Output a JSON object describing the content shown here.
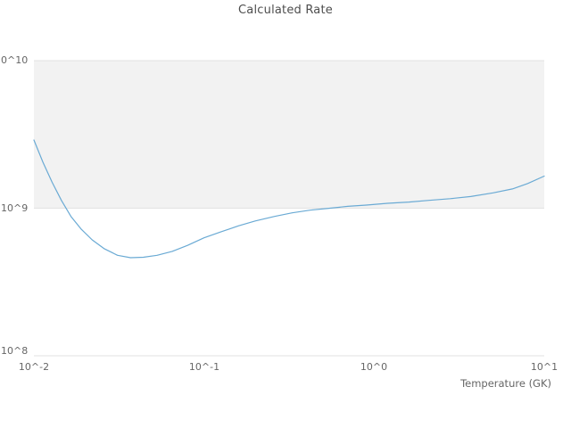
{
  "chart_data": {
    "type": "line",
    "title": "Calculated Rate",
    "xlabel": "Temperature (GK)",
    "ylabel": "",
    "x_scale": "log",
    "y_scale": "log",
    "xlim": [
      0.01,
      10
    ],
    "ylim": [
      100000000,
      10000000000
    ],
    "x_tick_labels": [
      "10^-2",
      "10^-1",
      "10^0",
      "10^1"
    ],
    "y_tick_labels": [
      "0^10",
      "10^9",
      "10^8"
    ],
    "grid": "horizontal decade lines; shaded band between 10^9 and 10^10",
    "legend": "none",
    "series": [
      {
        "name": "Calculated Rate",
        "x": [
          0.01,
          0.0113,
          0.0128,
          0.0145,
          0.0165,
          0.019,
          0.022,
          0.026,
          0.031,
          0.037,
          0.044,
          0.053,
          0.065,
          0.08,
          0.1,
          0.125,
          0.16,
          0.2,
          0.26,
          0.33,
          0.42,
          0.55,
          0.7,
          0.9,
          1.2,
          1.6,
          2.1,
          2.8,
          3.7,
          5.0,
          6.5,
          8.0,
          10.0
        ],
        "y": [
          2900000000.0,
          2050000000.0,
          1500000000.0,
          1130000000.0,
          880000000.0,
          720000000.0,
          610000000.0,
          530000000.0,
          480000000.0,
          462000000.0,
          465000000.0,
          480000000.0,
          510000000.0,
          560000000.0,
          630000000.0,
          690000000.0,
          760000000.0,
          820000000.0,
          880000000.0,
          930000000.0,
          970000000.0,
          1000000000.0,
          1030000000.0,
          1050000000.0,
          1080000000.0,
          1100000000.0,
          1130000000.0,
          1160000000.0,
          1200000000.0,
          1270000000.0,
          1350000000.0,
          1470000000.0,
          1650000000.0
        ]
      }
    ],
    "colors": {
      "line": "#6aaad4",
      "band": "#f2f2f2",
      "grid": "#e2e2e2",
      "tick_text": "#666666",
      "title_text": "#4d4d4d",
      "background": "#ffffff"
    }
  }
}
